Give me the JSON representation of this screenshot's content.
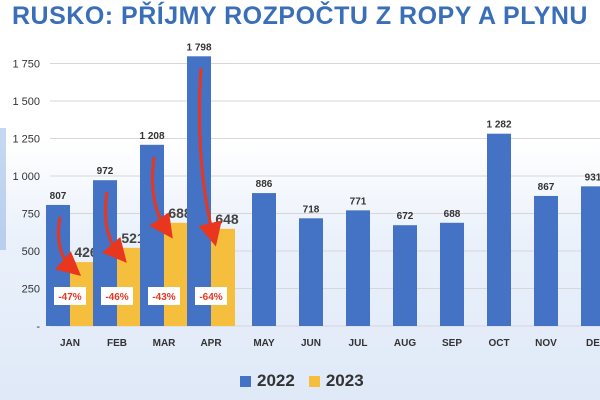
{
  "title": "RUSKO: PŘÍJMY ROZPOČTU Z ROPY A PLYNU",
  "colors": {
    "series_2022": "#4472C4",
    "series_2023": "#F5BE3C",
    "arrow": "#E8361F",
    "decline_text": "#E8361F"
  },
  "legend": {
    "s2022": "2022",
    "s2023": "2023"
  },
  "chart_data": {
    "type": "bar",
    "title": "RUSKO: PŘÍJMY ROZPOČTU Z ROPY A PLYNU",
    "categories": [
      "JAN",
      "FEB",
      "MAR",
      "APR",
      "MAY",
      "JUN",
      "JUL",
      "AUG",
      "SEP",
      "OCT",
      "NOV",
      "DEC"
    ],
    "category_labels_shown": [
      "JAN",
      "FEB",
      "MAR",
      "APR",
      "MAY",
      "JUN",
      "JUL",
      "AUG",
      "SEP",
      "OCT",
      "NOV",
      "DE"
    ],
    "series": [
      {
        "name": "2022",
        "values": [
          807,
          972,
          1208,
          1798,
          886,
          718,
          771,
          672,
          688,
          1282,
          867,
          931
        ],
        "labels": [
          "807",
          "972",
          "1 208",
          "1 798",
          "886",
          "718",
          "771",
          "672",
          "688",
          "1 282",
          "867",
          "931"
        ]
      },
      {
        "name": "2023",
        "values": [
          426,
          521,
          688,
          648,
          null,
          null,
          null,
          null,
          null,
          null,
          null,
          null
        ],
        "labels": [
          "426",
          "521",
          "688",
          "648"
        ]
      }
    ],
    "changes": [
      "-47%",
      "-46%",
      "-43%",
      "-64%"
    ],
    "yticks": [
      0,
      250,
      500,
      750,
      1000,
      1250,
      1500,
      1750
    ],
    "ytick_labels": [
      "-",
      "250",
      "500",
      "750",
      "1 000",
      "1 250",
      "1 500",
      "1 750"
    ],
    "ylim": [
      0,
      1800
    ],
    "grid": true,
    "legend_position": "bottom"
  }
}
